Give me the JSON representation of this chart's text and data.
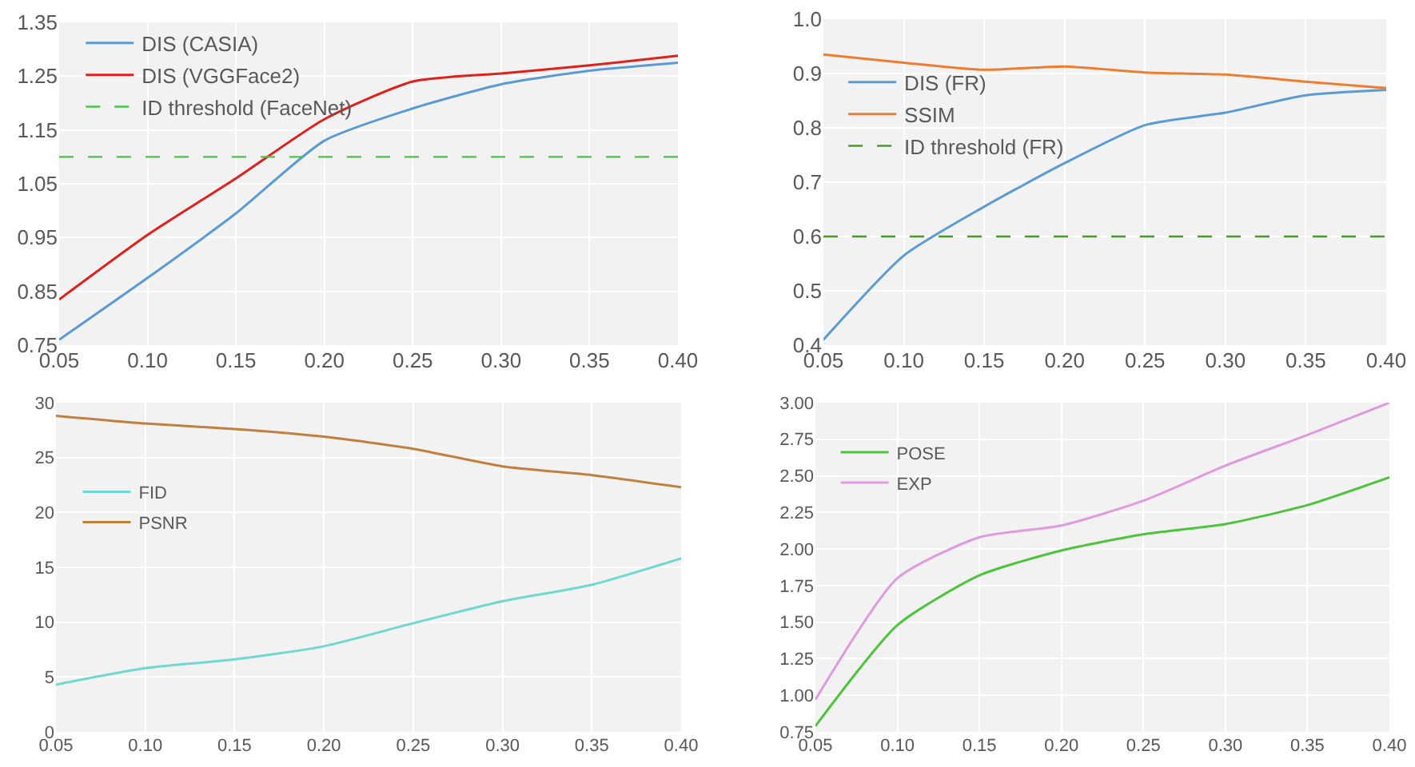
{
  "chart_data": [
    {
      "type": "line",
      "x": [
        0.05,
        0.1,
        0.15,
        0.2,
        0.25,
        0.3,
        0.35,
        0.4
      ],
      "xlim": [
        0.05,
        0.4
      ],
      "xticks": [
        {
          "value": 0.05,
          "label": "0.05"
        },
        {
          "value": 0.1,
          "label": "0.10"
        },
        {
          "value": 0.15,
          "label": "0.15"
        },
        {
          "value": 0.2,
          "label": "0.20"
        },
        {
          "value": 0.25,
          "label": "0.25"
        },
        {
          "value": 0.3,
          "label": "0.30"
        },
        {
          "value": 0.35,
          "label": "0.35"
        },
        {
          "value": 0.4,
          "label": "0.40"
        }
      ],
      "ylim": [
        0.75,
        1.35
      ],
      "yticks": [
        0.75,
        0.85,
        0.95,
        1.05,
        1.15,
        1.25,
        1.35
      ],
      "grid": true,
      "legend": "top left",
      "series": [
        {
          "name": "DIS (CASIA)",
          "color": "#5b9bd5",
          "values": [
            0.76,
            0.875,
            0.995,
            1.13,
            1.19,
            1.235,
            1.26,
            1.275
          ]
        },
        {
          "name": "DIS (VGGFace2)",
          "color": "#e0201b",
          "values": [
            0.835,
            0.955,
            1.06,
            1.17,
            1.24,
            1.255,
            1.27,
            1.288
          ]
        }
      ],
      "ref_lines": [
        {
          "axis": "y",
          "value": 1.1,
          "label": "ID threshold (FaceNet)",
          "color": "#4cc44c",
          "line_style": "dashed"
        }
      ]
    },
    {
      "type": "line",
      "x": [
        0.05,
        0.1,
        0.15,
        0.2,
        0.25,
        0.3,
        0.35,
        0.4
      ],
      "xlim": [
        0.05,
        0.4
      ],
      "xticks": [
        {
          "value": 0.05,
          "label": "0.05"
        },
        {
          "value": 0.1,
          "label": "0.10"
        },
        {
          "value": 0.15,
          "label": "0.15"
        },
        {
          "value": 0.2,
          "label": "0.20"
        },
        {
          "value": 0.25,
          "label": "0.25"
        },
        {
          "value": 0.3,
          "label": "0.30"
        },
        {
          "value": 0.35,
          "label": "0.35"
        },
        {
          "value": 0.4,
          "label": "0.40"
        }
      ],
      "ylim": [
        0.4,
        1.0
      ],
      "yticks": [
        0.4,
        0.5,
        0.6,
        0.7,
        0.8,
        0.9,
        {
          "value": 1.0,
          "label": "1.0"
        }
      ],
      "grid": true,
      "legend": "top left",
      "series": [
        {
          "name": "DIS (FR)",
          "color": "#5b9bd5",
          "values": [
            0.41,
            0.565,
            0.655,
            0.735,
            0.805,
            0.828,
            0.86,
            0.87
          ]
        },
        {
          "name": "SSIM",
          "color": "#ed7d31",
          "values": [
            0.935,
            0.92,
            0.907,
            0.913,
            0.902,
            0.898,
            0.885,
            0.873
          ]
        }
      ],
      "ref_lines": [
        {
          "axis": "y",
          "value": 0.6,
          "label": "ID threshold (FR)",
          "color": "#4a9a2a",
          "line_style": "dashed"
        }
      ]
    },
    {
      "type": "line",
      "x": [
        0.05,
        0.1,
        0.15,
        0.2,
        0.25,
        0.3,
        0.35,
        0.4
      ],
      "xlim": [
        0.05,
        0.4
      ],
      "xticks": [
        {
          "value": 0.05,
          "label": "0.05"
        },
        {
          "value": 0.1,
          "label": "0.10"
        },
        {
          "value": 0.15,
          "label": "0.15"
        },
        {
          "value": 0.2,
          "label": "0.20"
        },
        {
          "value": 0.25,
          "label": "0.25"
        },
        {
          "value": 0.3,
          "label": "0.30"
        },
        {
          "value": 0.35,
          "label": "0.35"
        },
        {
          "value": 0.4,
          "label": "0.40"
        }
      ],
      "ylim": [
        0,
        30
      ],
      "yticks": [
        0,
        5,
        10,
        15,
        20,
        25,
        30
      ],
      "grid": true,
      "legend": "top left",
      "series": [
        {
          "name": "FID",
          "color": "#6fd8d0",
          "values": [
            4.3,
            5.8,
            6.6,
            7.8,
            9.9,
            11.9,
            13.4,
            15.8
          ]
        },
        {
          "name": "PSNR",
          "color": "#c0803f",
          "values": [
            28.8,
            28.1,
            27.6,
            26.9,
            25.8,
            24.2,
            23.4,
            22.3
          ]
        }
      ]
    },
    {
      "type": "line",
      "x": [
        0.05,
        0.1,
        0.15,
        0.2,
        0.25,
        0.3,
        0.35,
        0.4
      ],
      "xlim": [
        0.05,
        0.4
      ],
      "xticks": [
        {
          "value": 0.05,
          "label": "0.05"
        },
        {
          "value": 0.1,
          "label": "0.10"
        },
        {
          "value": 0.15,
          "label": "0.15"
        },
        {
          "value": 0.2,
          "label": "0.20"
        },
        {
          "value": 0.25,
          "label": "0.25"
        },
        {
          "value": 0.3,
          "label": "0.30"
        },
        {
          "value": 0.35,
          "label": "0.35"
        },
        {
          "value": 0.4,
          "label": "0.40"
        }
      ],
      "ylim": [
        0.75,
        3.0
      ],
      "yticks": [
        {
          "value": 0.75,
          "label": "0.75"
        },
        {
          "value": 1.0,
          "label": "1.00"
        },
        {
          "value": 1.25,
          "label": "1.25"
        },
        {
          "value": 1.5,
          "label": "1.50"
        },
        {
          "value": 1.75,
          "label": "1.75"
        },
        {
          "value": 2.0,
          "label": "2.00"
        },
        {
          "value": 2.25,
          "label": "2.25"
        },
        {
          "value": 2.5,
          "label": "2.50"
        },
        {
          "value": 2.75,
          "label": "2.75"
        },
        {
          "value": 3.0,
          "label": "3.00"
        }
      ],
      "grid": true,
      "legend": "top left",
      "series": [
        {
          "name": "POSE",
          "color": "#4cc43c",
          "values": [
            0.79,
            1.48,
            1.82,
            1.99,
            2.1,
            2.17,
            2.3,
            2.49
          ]
        },
        {
          "name": "EXP",
          "color": "#e09ae0",
          "values": [
            0.97,
            1.8,
            2.08,
            2.16,
            2.33,
            2.57,
            2.78,
            3.0
          ]
        }
      ]
    }
  ]
}
